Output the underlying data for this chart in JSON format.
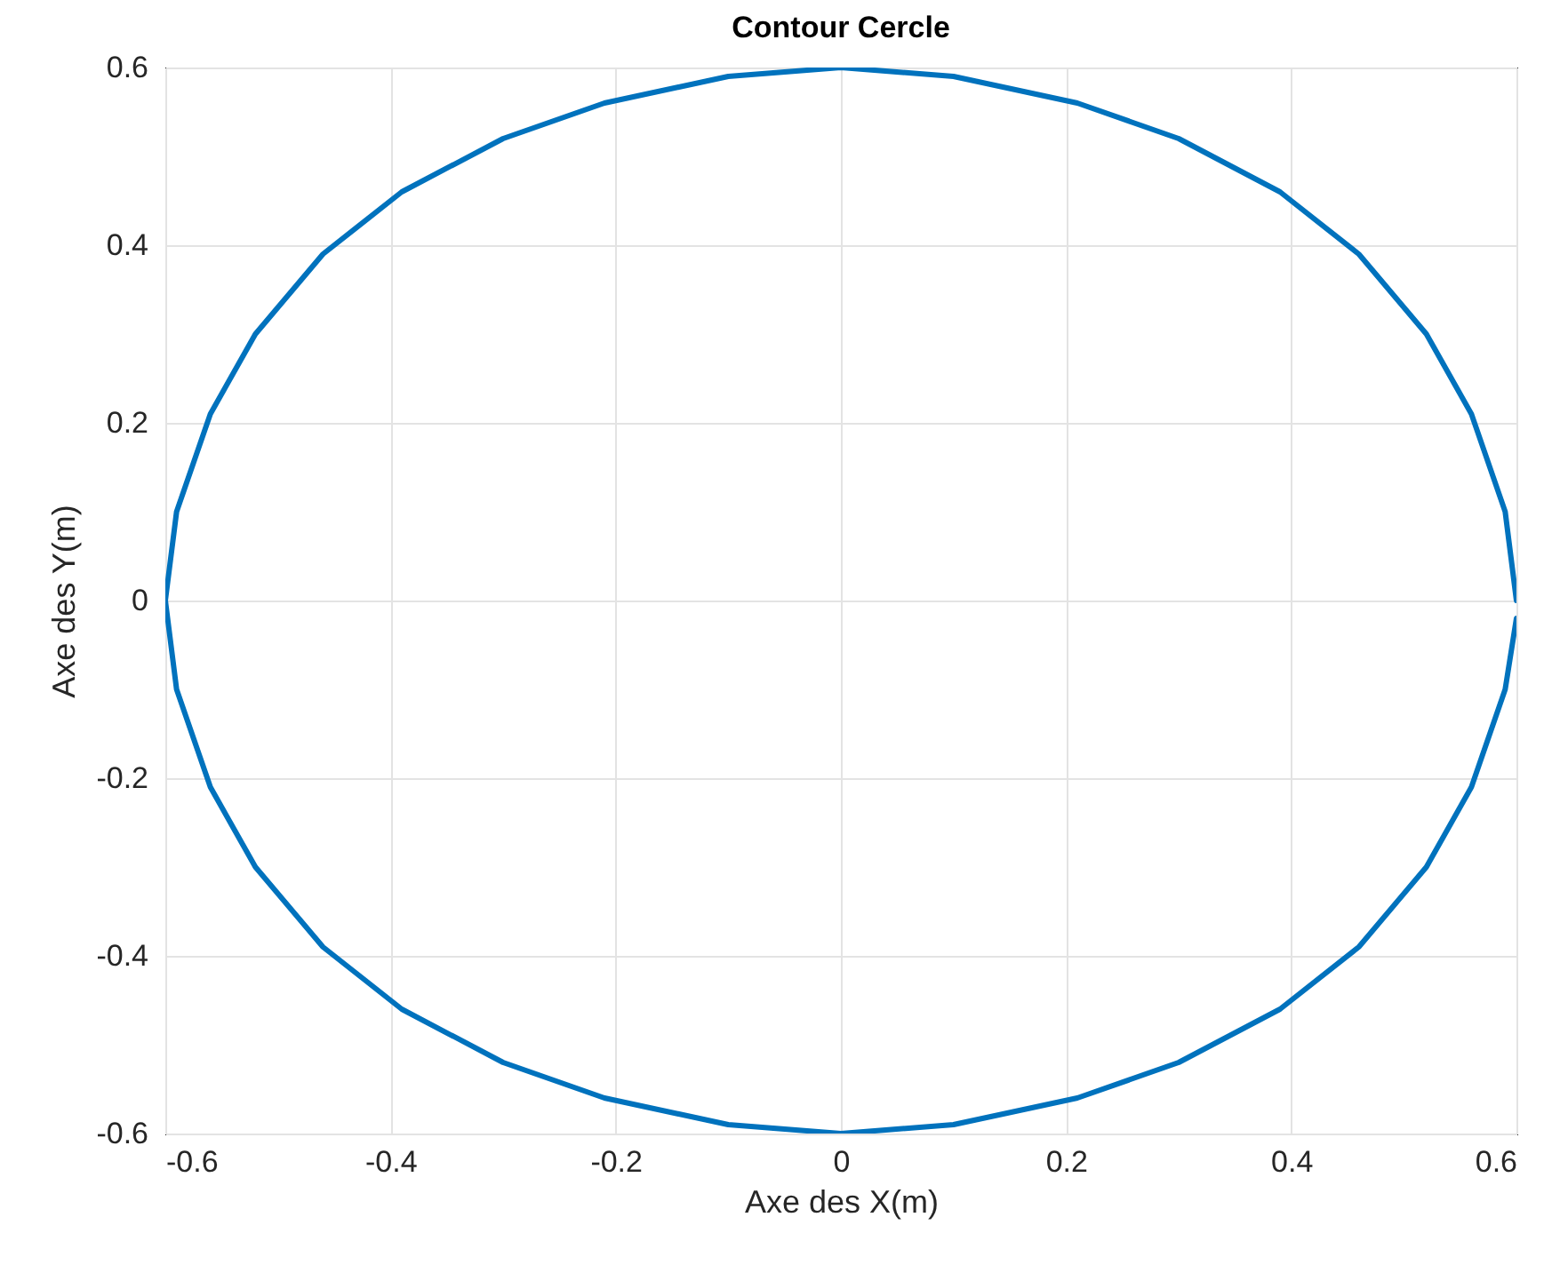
{
  "chart_data": {
    "type": "line",
    "title": "Contour Cercle",
    "xlabel": "Axe des X(m)",
    "ylabel": "Axe des Y(m)",
    "xlim": [
      -0.6,
      0.6
    ],
    "ylim": [
      -0.6,
      0.6
    ],
    "xticks": [
      -0.6,
      -0.4,
      -0.2,
      0,
      0.2,
      0.4,
      0.6
    ],
    "yticks": [
      -0.6,
      -0.4,
      -0.2,
      0,
      0.2,
      0.4,
      0.6
    ],
    "grid": true,
    "series": [
      {
        "color": "#0072bd",
        "x": [
          0.6,
          0.59,
          0.56,
          0.52,
          0.46,
          0.39,
          0.3,
          0.21,
          0.1,
          0,
          -0.1,
          -0.21,
          -0.3,
          -0.39,
          -0.46,
          -0.52,
          -0.56,
          -0.59,
          -0.6,
          -0.59,
          -0.56,
          -0.52,
          -0.46,
          -0.39,
          -0.3,
          -0.21,
          -0.1,
          0,
          0.1,
          0.21,
          0.3,
          0.39,
          0.46,
          0.52,
          0.56,
          0.59,
          0.6
        ],
        "values": [
          0,
          0.1,
          0.21,
          0.3,
          0.39,
          0.46,
          0.52,
          0.56,
          0.59,
          0.6,
          0.59,
          0.56,
          0.52,
          0.46,
          0.39,
          0.3,
          0.21,
          0.1,
          0,
          -0.1,
          -0.21,
          -0.3,
          -0.39,
          -0.46,
          -0.52,
          -0.56,
          -0.59,
          -0.6,
          -0.59,
          -0.56,
          -0.52,
          -0.46,
          -0.39,
          -0.3,
          -0.21,
          -0.1,
          -0.02
        ]
      }
    ]
  }
}
